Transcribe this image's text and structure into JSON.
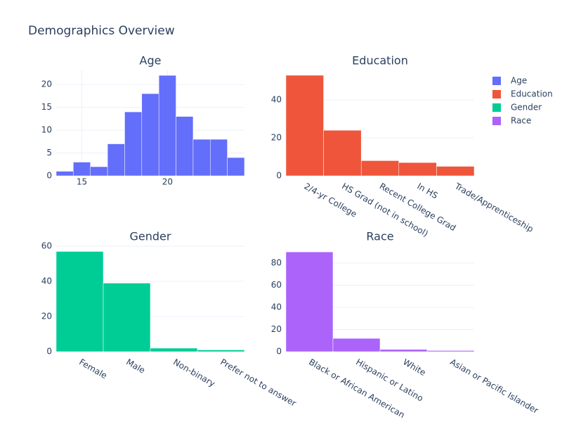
{
  "title": "Demographics Overview",
  "chart_data": [
    {
      "type": "histogram",
      "title": "Age",
      "bins": [
        13.5,
        14.5,
        15.5,
        16.5,
        17.5,
        18.5,
        19.5,
        20.5,
        21.5,
        22.5,
        23.5,
        24.5
      ],
      "series": [
        {
          "name": "Age",
          "color": "#636efa",
          "values": [
            1,
            3,
            2,
            7,
            14,
            18,
            22,
            13,
            8,
            8,
            4
          ]
        }
      ],
      "xlim": [
        13.5,
        24.5
      ],
      "xticks": [
        15,
        20
      ],
      "ylim": [
        0,
        23.1
      ],
      "yticks": [
        0,
        5,
        10,
        15,
        20
      ],
      "grid": true
    },
    {
      "type": "bar",
      "title": "Education",
      "categories": [
        "2/4-yr College",
        "HS Grad (not in school)",
        "Recent College Grad",
        "In HS",
        "Trade/Apprenticeship"
      ],
      "series": [
        {
          "name": "Education",
          "color": "#EF553B",
          "values": [
            53,
            24,
            8,
            7,
            5
          ]
        }
      ],
      "ylim": [
        0,
        55.6
      ],
      "yticks": [
        0,
        20,
        40
      ],
      "grid": true
    },
    {
      "type": "bar",
      "title": "Gender",
      "categories": [
        "Female",
        "Male",
        "Non-binary",
        "Prefer not to answer"
      ],
      "series": [
        {
          "name": "Gender",
          "color": "#00cc96",
          "values": [
            57,
            39,
            2,
            1
          ]
        }
      ],
      "ylim": [
        0,
        60
      ],
      "yticks": [
        0,
        20,
        40,
        60
      ],
      "grid": true
    },
    {
      "type": "bar",
      "title": "Race",
      "categories": [
        "Black or African American",
        "Hispanic or Latino",
        "White",
        "Asian or Pacific Islander"
      ],
      "series": [
        {
          "name": "Race",
          "color": "#ab63fa",
          "values": [
            90,
            12,
            2,
            1
          ]
        }
      ],
      "ylim": [
        0,
        95.2
      ],
      "yticks": [
        0,
        20,
        40,
        60,
        80
      ],
      "grid": true
    }
  ]
}
